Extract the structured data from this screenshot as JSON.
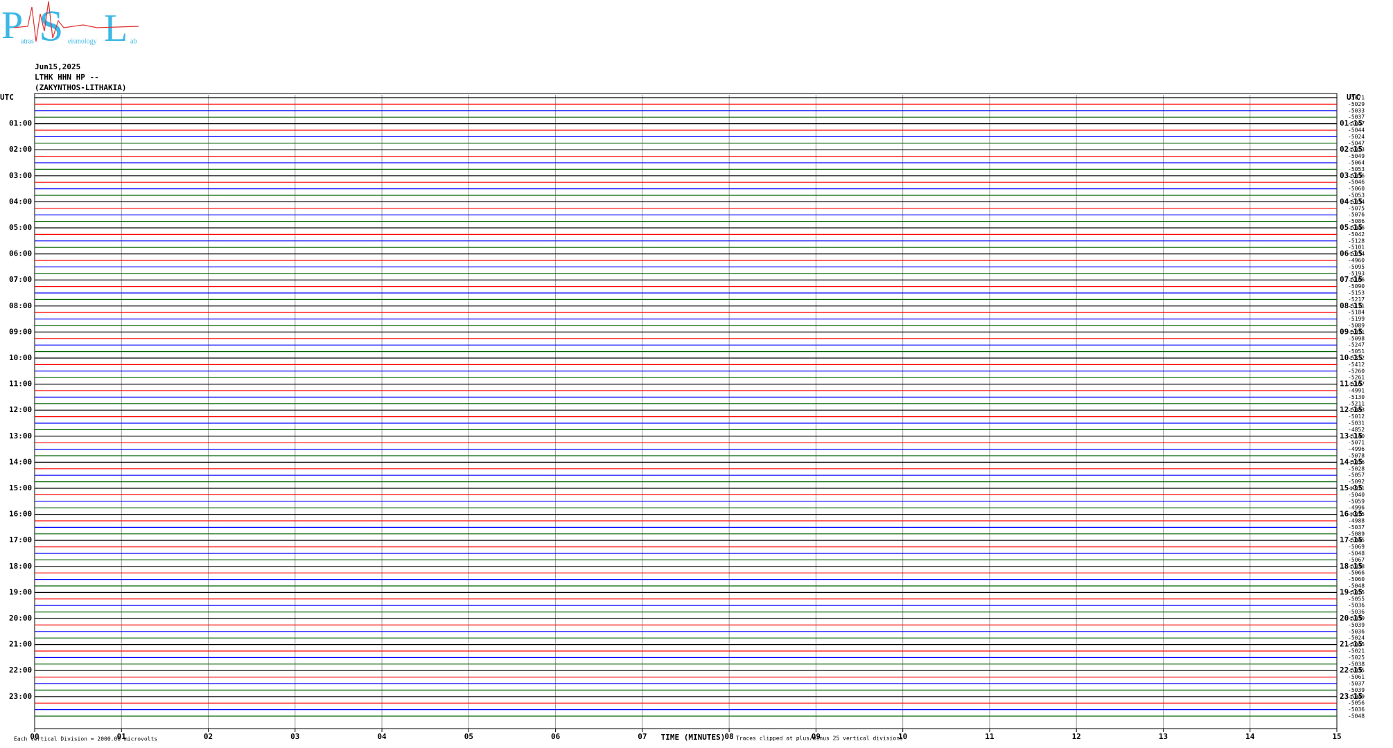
{
  "logo": {
    "letters": [
      "P",
      "S",
      "L"
    ],
    "words": [
      "atras",
      "eismology",
      "ab"
    ]
  },
  "header": {
    "date": "Jun15,2025",
    "station": "LTHK HHN HP --",
    "location": "(ZAKYNTHOS-LITHAKIA)"
  },
  "left_labels": [
    "UTC",
    "01:00",
    "02:00",
    "03:00",
    "04:00",
    "05:00",
    "06:00",
    "07:00",
    "08:00",
    "09:00",
    "10:00",
    "11:00",
    "12:00",
    "13:00",
    "14:00",
    "15:00",
    "16:00",
    "17:00",
    "18:00",
    "19:00",
    "20:00",
    "21:00",
    "22:00",
    "23:00"
  ],
  "right_labels": [
    "UTC",
    "01:15",
    "02:15",
    "03:15",
    "04:15",
    "05:15",
    "06:15",
    "07:15",
    "08:15",
    "09:15",
    "10:15",
    "11:15",
    "12:15",
    "13:15",
    "14:15",
    "15:15",
    "16:15",
    "17:15",
    "18:15",
    "19:15",
    "20:15",
    "21:15",
    "22:15",
    "23:15"
  ],
  "offsets": [
    -5071,
    -5029,
    -5033,
    -5037,
    -5047,
    -5044,
    -5024,
    -5047,
    -5023,
    -5049,
    -5064,
    -5053,
    -5056,
    -5046,
    -5060,
    -5053,
    -5034,
    -5075,
    -5076,
    -5086,
    -5046,
    -5042,
    -5128,
    -5101,
    -5034,
    -4960,
    -5095,
    -5193,
    -5106,
    -5090,
    -5153,
    -5217,
    -5171,
    -5184,
    -5199,
    -5089,
    -5071,
    -5098,
    -5247,
    -5051,
    -5312,
    -5412,
    -5260,
    -5261,
    -5167,
    -4991,
    -5130,
    -5211,
    -5083,
    -5012,
    -5031,
    -4852,
    -5140,
    -5071,
    -4996,
    -5078,
    -5026,
    -5028,
    -5057,
    -5092,
    -4971,
    -5040,
    -5059,
    -4996,
    -4975,
    -4988,
    -5037,
    -5089,
    -5045,
    -5069,
    -5048,
    -5067,
    -5038,
    -5066,
    -5060,
    -5048,
    -5025,
    -5055,
    -5036,
    -5036,
    -5039,
    -5039,
    -5036,
    -5024,
    -5045,
    -5021,
    -5025,
    -5038,
    -5035,
    -5061,
    -5037,
    -5039,
    -5049,
    -5056,
    -5036,
    -5048
  ],
  "trace_colors": [
    "#000000",
    "#ff0000",
    "#0000ff",
    "#006400"
  ],
  "x_ticks": [
    "00",
    "01",
    "02",
    "03",
    "04",
    "05",
    "06",
    "07",
    "08",
    "09",
    "10",
    "11",
    "12",
    "13",
    "14",
    "15"
  ],
  "x_title": "TIME (MINUTES)",
  "clip_note": "Traces clipped at plus/minus 25 vertical divisions",
  "division_note": "Each Vertical Division = 2000.00 microvolts"
}
